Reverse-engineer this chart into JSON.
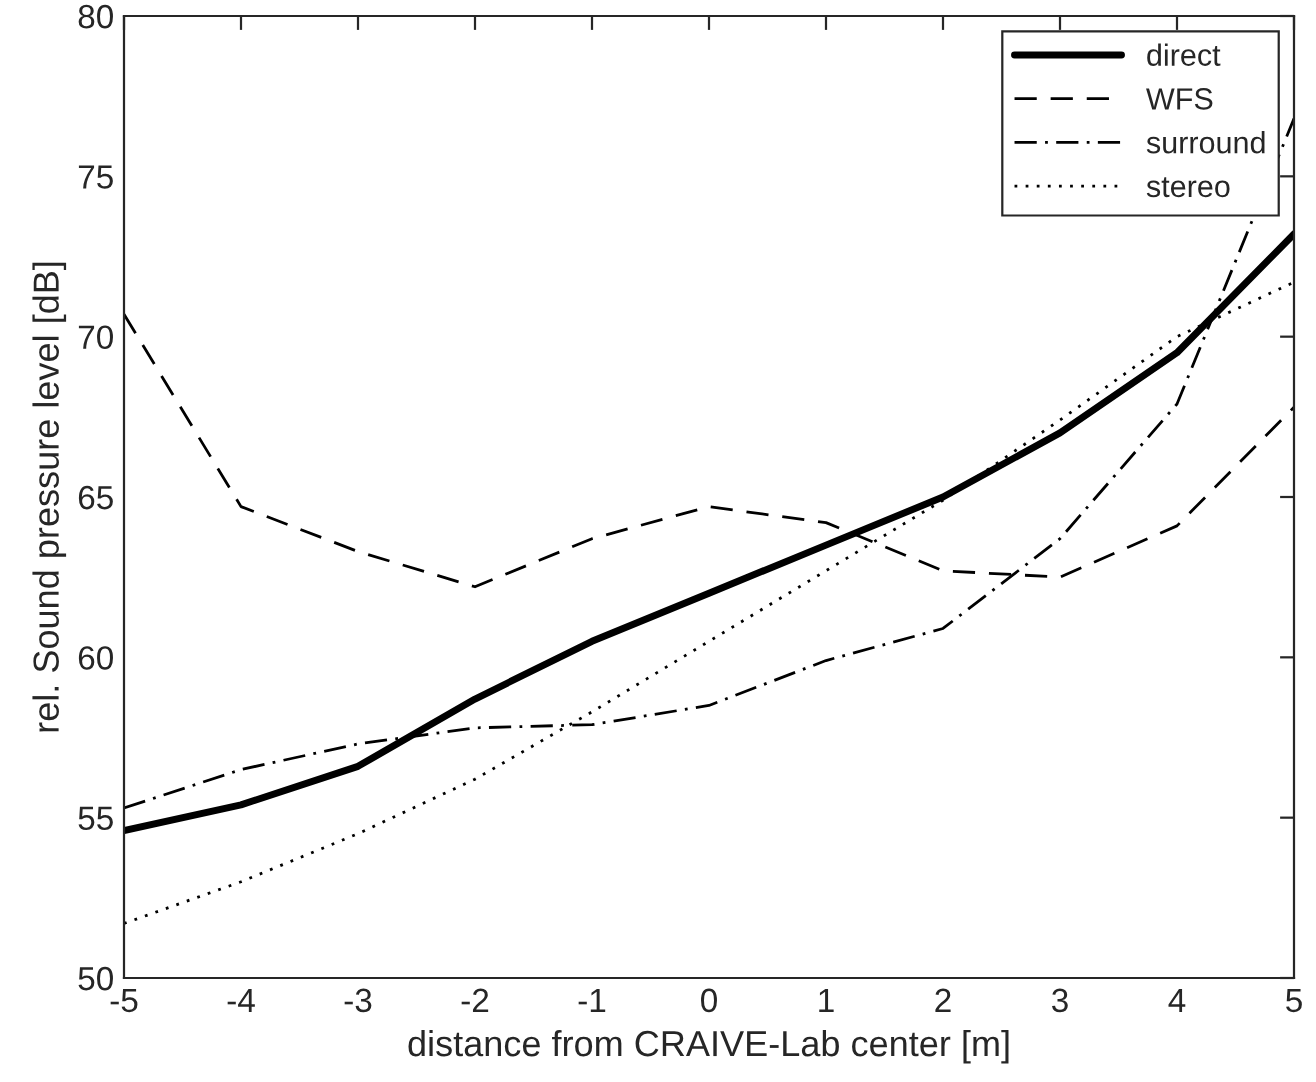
{
  "chart_data": {
    "type": "line",
    "xlabel": "distance from CRAIVE-Lab center [m]",
    "ylabel": "rel. Sound pressure level [dB]",
    "x": [
      -5,
      -4,
      -3,
      -2,
      -1,
      0,
      1,
      2,
      3,
      4,
      5
    ],
    "series": [
      {
        "name": "direct",
        "color": "#000000",
        "line_style": "solid",
        "values": [
          54.6,
          55.4,
          56.6,
          58.7,
          60.5,
          62.0,
          63.5,
          65.0,
          67.0,
          69.5,
          73.2
        ]
      },
      {
        "name": "WFS",
        "color": "#000000",
        "line_style": "dashed",
        "values": [
          70.7,
          64.7,
          63.3,
          62.2,
          63.7,
          64.7,
          64.2,
          62.7,
          62.5,
          64.1,
          67.8
        ]
      },
      {
        "name": "surround",
        "color": "#000000",
        "line_style": "dashdot",
        "values": [
          55.3,
          56.5,
          57.3,
          57.8,
          57.9,
          58.5,
          59.9,
          60.9,
          63.7,
          67.9,
          76.8
        ]
      },
      {
        "name": "stereo",
        "color": "#000000",
        "line_style": "dotted",
        "values": [
          51.7,
          53.0,
          54.5,
          56.2,
          58.3,
          60.5,
          62.7,
          64.9,
          67.4,
          70.0,
          71.7
        ]
      }
    ],
    "xlim": [
      -5,
      5
    ],
    "ylim": [
      50,
      80
    ],
    "xticks": [
      -5,
      -4,
      -3,
      -2,
      -1,
      0,
      1,
      2,
      3,
      4,
      5
    ],
    "yticks": [
      50,
      55,
      60,
      65,
      70,
      75,
      80
    ],
    "grid": false,
    "legend": "top right",
    "marker": "none"
  }
}
